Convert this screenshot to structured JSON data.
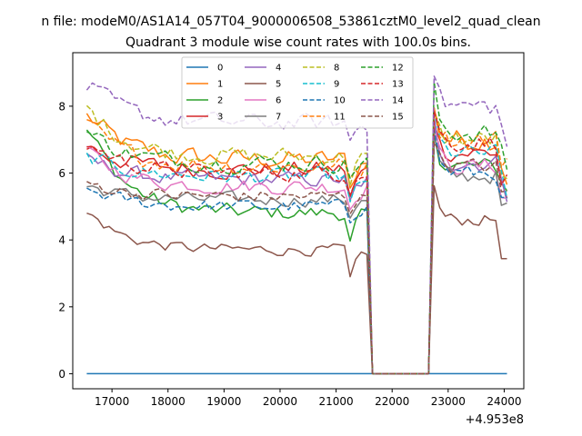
{
  "chart_data": {
    "type": "line",
    "suptitle": "n file: modeM0/AS1A14_057T04_9000006508_53861cztM0_level2_quad_clean",
    "title": "Quadrant 3 module wise count rates with 100.0s bins.",
    "xlabel": "",
    "ylabel": "",
    "x_offset_label": "+4.953e8",
    "xlim": [
      16300,
      24350
    ],
    "ylim": [
      -0.45,
      9.6
    ],
    "xticks": [
      17000,
      18000,
      19000,
      20000,
      21000,
      22000,
      23000,
      24000
    ],
    "xtick_labels": [
      "17000",
      "18000",
      "19000",
      "20000",
      "21000",
      "22000",
      "23000",
      "24000"
    ],
    "yticks": [
      0,
      2,
      4,
      6,
      8
    ],
    "ytick_labels": [
      "0",
      "2",
      "4",
      "6",
      "8"
    ],
    "grid": false,
    "legend_position": "upper-center",
    "legend_columns": 4,
    "gap_after_x": 21550,
    "gap_x": [
      21650,
      22650
    ],
    "resume_x": 22650,
    "segment1_range": [
      16550,
      21550
    ],
    "segment2_range": [
      22750,
      24050
    ],
    "bin_seconds": 100,
    "series": [
      {
        "name": "0",
        "color": "#1f77b4",
        "dash": "solid",
        "level1": 0.0,
        "level2": 0.0,
        "var": 0.0
      },
      {
        "name": "1",
        "color": "#ff7f0e",
        "dash": "solid",
        "level1": 6.4,
        "level2": 7.0,
        "var": 0.45,
        "start": 7.7
      },
      {
        "name": "2",
        "color": "#2ca02c",
        "dash": "solid",
        "level1": 4.8,
        "level2": 6.2,
        "var": 0.35,
        "start": 7.3
      },
      {
        "name": "3",
        "color": "#d62728",
        "dash": "solid",
        "level1": 6.1,
        "level2": 6.6,
        "var": 0.4,
        "start": 6.8
      },
      {
        "name": "4",
        "color": "#9467bd",
        "dash": "solid",
        "level1": 5.8,
        "level2": 6.3,
        "var": 0.35,
        "start": 6.4
      },
      {
        "name": "5",
        "color": "#8c564b",
        "dash": "solid",
        "level1": 3.7,
        "level2": 4.6,
        "var": 0.25,
        "start": 4.8
      },
      {
        "name": "6",
        "color": "#e377c2",
        "dash": "solid",
        "level1": 5.6,
        "level2": 6.2,
        "var": 0.35,
        "start": 6.6
      },
      {
        "name": "7",
        "color": "#7f7f7f",
        "dash": "solid",
        "level1": 5.2,
        "level2": 5.9,
        "var": 0.3,
        "start": 5.6
      },
      {
        "name": "8",
        "color": "#bcbd22",
        "dash": "dashed",
        "level1": 6.5,
        "level2": 7.0,
        "var": 0.4,
        "start": 7.9
      },
      {
        "name": "9",
        "color": "#17becf",
        "dash": "dashed",
        "level1": 5.9,
        "level2": 6.6,
        "var": 0.35,
        "start": 6.5
      },
      {
        "name": "10",
        "color": "#1f77b4",
        "dash": "dashed",
        "level1": 5.0,
        "level2": 6.0,
        "var": 0.3,
        "start": 5.5
      },
      {
        "name": "11",
        "color": "#ff7f0e",
        "dash": "dashed",
        "level1": 6.2,
        "level2": 7.0,
        "var": 0.4,
        "start": 7.4
      },
      {
        "name": "12",
        "color": "#2ca02c",
        "dash": "dashed",
        "level1": 6.3,
        "level2": 7.2,
        "var": 0.4,
        "start": 7.2
      },
      {
        "name": "13",
        "color": "#d62728",
        "dash": "dashed",
        "level1": 6.0,
        "level2": 6.9,
        "var": 0.35,
        "start": 6.9
      },
      {
        "name": "14",
        "color": "#9467bd",
        "dash": "dashed",
        "level1": 7.5,
        "level2": 8.0,
        "var": 0.4,
        "start": 8.6
      },
      {
        "name": "15",
        "color": "#8c564b",
        "dash": "dashed",
        "level1": 5.3,
        "level2": 6.2,
        "var": 0.3,
        "start": 5.7
      }
    ]
  }
}
